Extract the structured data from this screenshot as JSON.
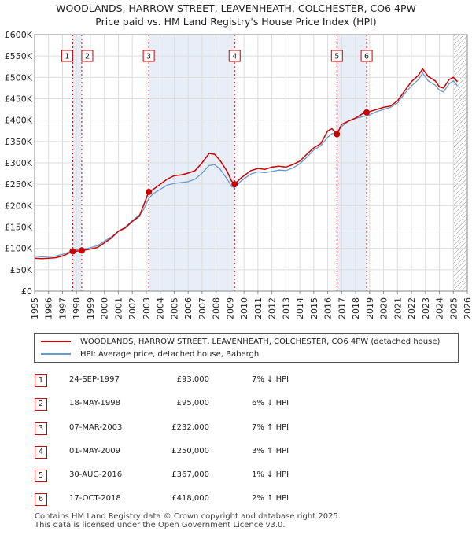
{
  "title": {
    "line1": "WOODLANDS, HARROW STREET, LEAVENHEATH, COLCHESTER, CO6 4PW",
    "line2": "Price paid vs. HM Land Registry's House Price Index (HPI)"
  },
  "colors": {
    "property": "#cc0000",
    "hpi": "#6699cc",
    "shade": "#e8eef8"
  },
  "chart_data": {
    "type": "line",
    "xlim": [
      1995,
      2026
    ],
    "ylim": [
      0,
      600000
    ],
    "y_ticks": [
      {
        "value": 0,
        "label": "£0"
      },
      {
        "value": 50000,
        "label": "£50K"
      },
      {
        "value": 100000,
        "label": "£100K"
      },
      {
        "value": 150000,
        "label": "£150K"
      },
      {
        "value": 200000,
        "label": "£200K"
      },
      {
        "value": 250000,
        "label": "£250K"
      },
      {
        "value": 300000,
        "label": "£300K"
      },
      {
        "value": 350000,
        "label": "£350K"
      },
      {
        "value": 400000,
        "label": "£400K"
      },
      {
        "value": 450000,
        "label": "£450K"
      },
      {
        "value": 500000,
        "label": "£500K"
      },
      {
        "value": 550000,
        "label": "£550K"
      },
      {
        "value": 600000,
        "label": "£600K"
      }
    ],
    "x_ticks": [
      "1995",
      "1996",
      "1997",
      "1998",
      "1999",
      "2000",
      "2001",
      "2002",
      "2003",
      "2004",
      "2005",
      "2006",
      "2007",
      "2008",
      "2009",
      "2010",
      "2011",
      "2012",
      "2013",
      "2014",
      "2015",
      "2016",
      "2017",
      "2018",
      "2019",
      "2020",
      "2021",
      "2022",
      "2023",
      "2024",
      "2025",
      "2026"
    ],
    "grid": true,
    "shaded_ranges": [
      [
        1997.73,
        1998.38
      ],
      [
        2003.18,
        2009.33
      ],
      [
        2016.66,
        2018.79
      ]
    ],
    "hatched_from": 2025.0,
    "series": [
      {
        "name": "WOODLANDS, HARROW STREET, LEAVENHEATH, COLCHESTER, CO6 4PW (detached house)",
        "color": "#cc0000",
        "points": [
          [
            1995.0,
            77000
          ],
          [
            1995.5,
            76000
          ],
          [
            1996.0,
            77000
          ],
          [
            1996.5,
            78000
          ],
          [
            1997.0,
            82000
          ],
          [
            1997.73,
            93000
          ],
          [
            1998.0,
            93500
          ],
          [
            1998.38,
            95000
          ],
          [
            1998.8,
            97000
          ],
          [
            1999.5,
            102000
          ],
          [
            2000.0,
            113000
          ],
          [
            2000.5,
            124000
          ],
          [
            2001.0,
            140000
          ],
          [
            2001.5,
            148000
          ],
          [
            2002.0,
            163000
          ],
          [
            2002.5,
            175000
          ],
          [
            2002.8,
            200000
          ],
          [
            2003.18,
            232000
          ],
          [
            2003.5,
            238000
          ],
          [
            2004.0,
            250000
          ],
          [
            2004.5,
            262000
          ],
          [
            2005.0,
            270000
          ],
          [
            2005.5,
            272000
          ],
          [
            2006.0,
            276000
          ],
          [
            2006.5,
            282000
          ],
          [
            2007.0,
            300000
          ],
          [
            2007.5,
            322000
          ],
          [
            2007.9,
            320000
          ],
          [
            2008.3,
            305000
          ],
          [
            2008.8,
            280000
          ],
          [
            2009.1,
            258000
          ],
          [
            2009.33,
            250000
          ],
          [
            2009.8,
            265000
          ],
          [
            2010.5,
            282000
          ],
          [
            2011.0,
            287000
          ],
          [
            2011.5,
            285000
          ],
          [
            2012.0,
            290000
          ],
          [
            2012.5,
            292000
          ],
          [
            2013.0,
            290000
          ],
          [
            2013.5,
            296000
          ],
          [
            2014.0,
            304000
          ],
          [
            2014.5,
            320000
          ],
          [
            2015.0,
            335000
          ],
          [
            2015.5,
            345000
          ],
          [
            2016.0,
            375000
          ],
          [
            2016.3,
            380000
          ],
          [
            2016.66,
            367000
          ],
          [
            2017.0,
            390000
          ],
          [
            2017.5,
            398000
          ],
          [
            2018.0,
            405000
          ],
          [
            2018.5,
            415000
          ],
          [
            2018.79,
            418000
          ],
          [
            2019.0,
            420000
          ],
          [
            2019.5,
            425000
          ],
          [
            2020.0,
            430000
          ],
          [
            2020.5,
            433000
          ],
          [
            2021.0,
            445000
          ],
          [
            2021.5,
            468000
          ],
          [
            2022.0,
            490000
          ],
          [
            2022.5,
            505000
          ],
          [
            2022.8,
            520000
          ],
          [
            2023.2,
            502000
          ],
          [
            2023.7,
            492000
          ],
          [
            2024.0,
            478000
          ],
          [
            2024.3,
            475000
          ],
          [
            2024.7,
            495000
          ],
          [
            2025.0,
            500000
          ],
          [
            2025.3,
            490000
          ]
        ]
      },
      {
        "name": "HPI: Average price, detached house, Babergh",
        "color": "#6699cc",
        "points": [
          [
            1995.0,
            82000
          ],
          [
            1995.5,
            80000
          ],
          [
            1996.0,
            81000
          ],
          [
            1996.5,
            82000
          ],
          [
            1997.0,
            86000
          ],
          [
            1997.73,
            95000
          ],
          [
            1998.0,
            96000
          ],
          [
            1998.38,
            98000
          ],
          [
            1998.8,
            100000
          ],
          [
            1999.5,
            106000
          ],
          [
            2000.0,
            117000
          ],
          [
            2000.5,
            127000
          ],
          [
            2001.0,
            140000
          ],
          [
            2001.5,
            150000
          ],
          [
            2002.0,
            165000
          ],
          [
            2002.5,
            178000
          ],
          [
            2002.8,
            190000
          ],
          [
            2003.18,
            217000
          ],
          [
            2003.5,
            228000
          ],
          [
            2004.0,
            238000
          ],
          [
            2004.5,
            248000
          ],
          [
            2005.0,
            252000
          ],
          [
            2005.5,
            254000
          ],
          [
            2006.0,
            256000
          ],
          [
            2006.5,
            262000
          ],
          [
            2007.0,
            276000
          ],
          [
            2007.5,
            294000
          ],
          [
            2007.9,
            296000
          ],
          [
            2008.3,
            285000
          ],
          [
            2008.8,
            262000
          ],
          [
            2009.1,
            245000
          ],
          [
            2009.33,
            242000
          ],
          [
            2009.8,
            258000
          ],
          [
            2010.5,
            274000
          ],
          [
            2011.0,
            279000
          ],
          [
            2011.5,
            277000
          ],
          [
            2012.0,
            280000
          ],
          [
            2012.5,
            283000
          ],
          [
            2013.0,
            282000
          ],
          [
            2013.5,
            288000
          ],
          [
            2014.0,
            298000
          ],
          [
            2014.5,
            313000
          ],
          [
            2015.0,
            330000
          ],
          [
            2015.5,
            340000
          ],
          [
            2016.0,
            360000
          ],
          [
            2016.3,
            368000
          ],
          [
            2016.66,
            371000
          ],
          [
            2017.0,
            385000
          ],
          [
            2017.5,
            398000
          ],
          [
            2018.0,
            404000
          ],
          [
            2018.5,
            408000
          ],
          [
            2018.79,
            410000
          ],
          [
            2019.0,
            412000
          ],
          [
            2019.5,
            420000
          ],
          [
            2020.0,
            425000
          ],
          [
            2020.5,
            430000
          ],
          [
            2021.0,
            440000
          ],
          [
            2021.5,
            462000
          ],
          [
            2022.0,
            480000
          ],
          [
            2022.5,
            495000
          ],
          [
            2022.8,
            510000
          ],
          [
            2023.2,
            492000
          ],
          [
            2023.7,
            482000
          ],
          [
            2024.0,
            470000
          ],
          [
            2024.3,
            466000
          ],
          [
            2024.7,
            485000
          ],
          [
            2025.0,
            492000
          ],
          [
            2025.3,
            480000
          ]
        ]
      }
    ],
    "sales": [
      {
        "label": "1",
        "x": 1997.73,
        "y": 93000
      },
      {
        "label": "2",
        "x": 1998.38,
        "y": 95000
      },
      {
        "label": "3",
        "x": 2003.18,
        "y": 232000
      },
      {
        "label": "4",
        "x": 2009.33,
        "y": 250000
      },
      {
        "label": "5",
        "x": 2016.66,
        "y": 367000
      },
      {
        "label": "6",
        "x": 2018.79,
        "y": 418000
      }
    ]
  },
  "legend": {
    "property_label": "WOODLANDS, HARROW STREET, LEAVENHEATH, COLCHESTER, CO6 4PW (detached house)",
    "hpi_label": "HPI: Average price, detached house, Babergh"
  },
  "sales_table": [
    {
      "num": "1",
      "date": "24-SEP-1997",
      "price": "£93,000",
      "hpi": "7% ↓ HPI"
    },
    {
      "num": "2",
      "date": "18-MAY-1998",
      "price": "£95,000",
      "hpi": "6% ↓ HPI"
    },
    {
      "num": "3",
      "date": "07-MAR-2003",
      "price": "£232,000",
      "hpi": "7% ↑ HPI"
    },
    {
      "num": "4",
      "date": "01-MAY-2009",
      "price": "£250,000",
      "hpi": "3% ↑ HPI"
    },
    {
      "num": "5",
      "date": "30-AUG-2016",
      "price": "£367,000",
      "hpi": "1% ↓ HPI"
    },
    {
      "num": "6",
      "date": "17-OCT-2018",
      "price": "£418,000",
      "hpi": "2% ↑ HPI"
    }
  ],
  "footer": {
    "line1": "Contains HM Land Registry data © Crown copyright and database right 2025.",
    "line2": "This data is licensed under the Open Government Licence v3.0."
  }
}
